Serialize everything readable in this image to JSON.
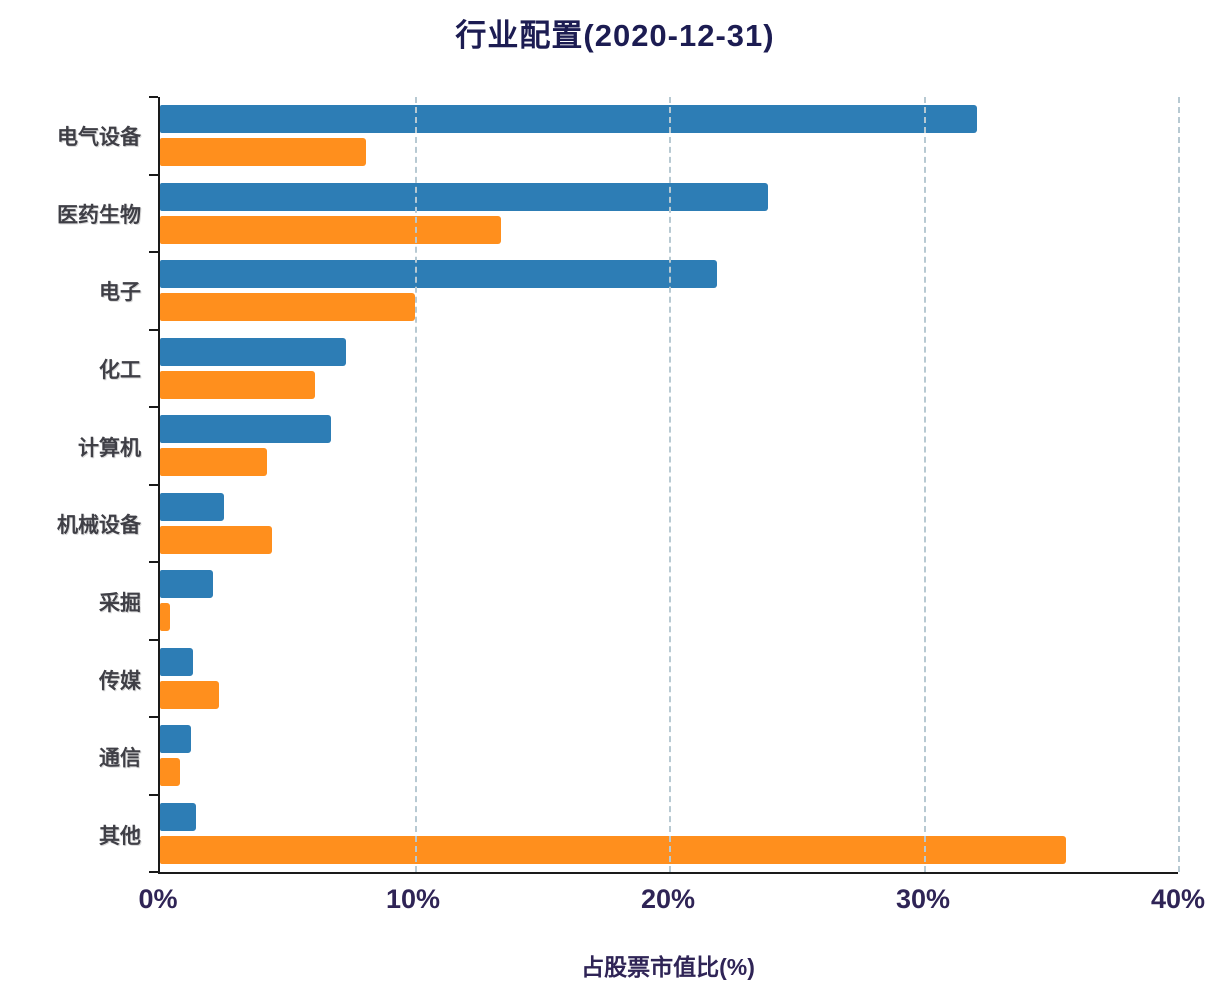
{
  "title": "行业配置(2020-12-31)",
  "colors": {
    "bar_blue": "#2d7db5",
    "bar_orange": "#ff8f1d",
    "title_text": "#1c1c52",
    "tick_text": "#2f2456",
    "axis_line": "#1a1a1a",
    "gridline": "#b7c9d2",
    "category_text": "#3f3f46"
  },
  "chart_data": {
    "type": "bar",
    "orientation": "horizontal",
    "title": "行业配置(2020-12-31)",
    "xlabel": "占股票市值比(%)",
    "ylabel": "",
    "xlim": [
      0,
      40
    ],
    "x_ticks": [
      "0%",
      "10%",
      "20%",
      "30%",
      "40%"
    ],
    "x_tick_values": [
      0,
      10,
      20,
      30,
      40
    ],
    "grid_values": [
      10,
      20,
      30,
      40
    ],
    "grid": "vertical-dashed",
    "legend": "none",
    "categories": [
      "电气设备",
      "医药生物",
      "电子",
      "化工",
      "计算机",
      "机械设备",
      "采掘",
      "传媒",
      "通信",
      "其他"
    ],
    "series": [
      {
        "name": "blue-series",
        "color_key": "bar_blue",
        "values": [
          32.1,
          23.9,
          21.9,
          7.3,
          6.7,
          2.5,
          2.1,
          1.3,
          1.2,
          1.4
        ]
      },
      {
        "name": "orange-series",
        "color_key": "bar_orange",
        "values": [
          8.1,
          13.4,
          10.0,
          6.1,
          4.2,
          4.4,
          0.4,
          2.3,
          0.8,
          35.6
        ]
      }
    ]
  }
}
